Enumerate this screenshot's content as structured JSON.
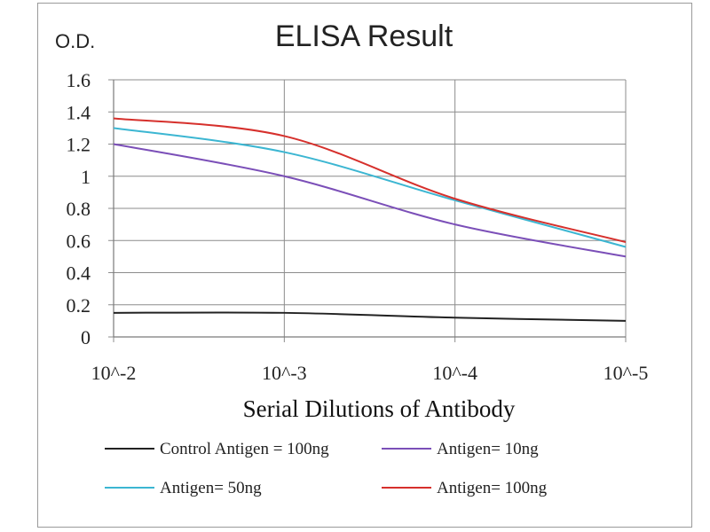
{
  "chart_data": {
    "type": "line",
    "title": "ELISA Result",
    "ylabel": "O.D.",
    "xlabel": "Serial Dilutions  of Antibody",
    "categories": [
      "10^-2",
      "10^-3",
      "10^-4",
      "10^-5"
    ],
    "y_ticks": [
      "0",
      "0.2",
      "0.4",
      "0.6",
      "0.8",
      "1",
      "1.2",
      "1.4",
      "1.6"
    ],
    "ylim": [
      0,
      1.6
    ],
    "grid": true,
    "legend_position": "bottom",
    "series": [
      {
        "name": "Control Antigen = 100ng",
        "color": "#222222",
        "values": [
          0.15,
          0.15,
          0.12,
          0.1
        ]
      },
      {
        "name": "Antigen= 10ng",
        "color": "#7b4fb8",
        "values": [
          1.2,
          1.0,
          0.7,
          0.5
        ]
      },
      {
        "name": "Antigen= 50ng",
        "color": "#3cb6d2",
        "values": [
          1.3,
          1.15,
          0.85,
          0.56
        ]
      },
      {
        "name": "Antigen= 100ng",
        "color": "#d6302c",
        "values": [
          1.36,
          1.25,
          0.86,
          0.59
        ]
      }
    ]
  }
}
